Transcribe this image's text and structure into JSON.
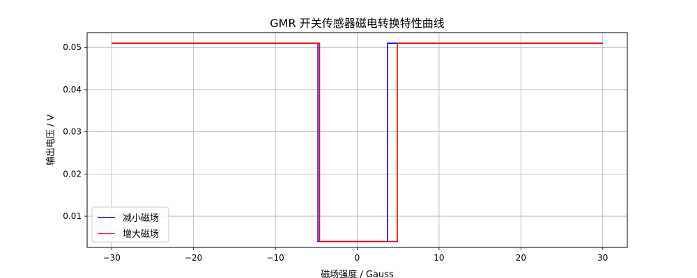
{
  "chart_data": {
    "type": "line",
    "title": "GMR 开关传感器磁电转换特性曲线",
    "xlabel": "磁场强度 / Gauss",
    "ylabel": "输出电压 / V",
    "xlim": [
      -33,
      33
    ],
    "ylim": [
      0.0026,
      0.0535
    ],
    "xticks": [
      -30,
      -20,
      -10,
      0,
      10,
      20,
      30
    ],
    "xtick_labels": [
      "−30",
      "−20",
      "−10",
      "0",
      "10",
      "20",
      "30"
    ],
    "yticks": [
      0.01,
      0.02,
      0.03,
      0.04,
      0.05
    ],
    "ytick_labels": [
      "0.01",
      "0.02",
      "0.03",
      "0.04",
      "0.05"
    ],
    "grid": true,
    "legend_position": "lower-left",
    "series": [
      {
        "name": "减小磁场",
        "color": "#0000ff",
        "x": [
          -30,
          -4.8,
          -4.8,
          3.7,
          3.7,
          4.9,
          4.9,
          30
        ],
        "y": [
          0.051,
          0.051,
          0.004,
          0.004,
          0.051,
          0.051,
          0.051,
          0.051
        ]
      },
      {
        "name": "增大磁场",
        "color": "#ff0000",
        "x": [
          -30,
          -4.6,
          -4.6,
          4.9,
          4.9,
          30
        ],
        "y": [
          0.051,
          0.051,
          0.004,
          0.004,
          0.051,
          0.051
        ]
      }
    ]
  }
}
